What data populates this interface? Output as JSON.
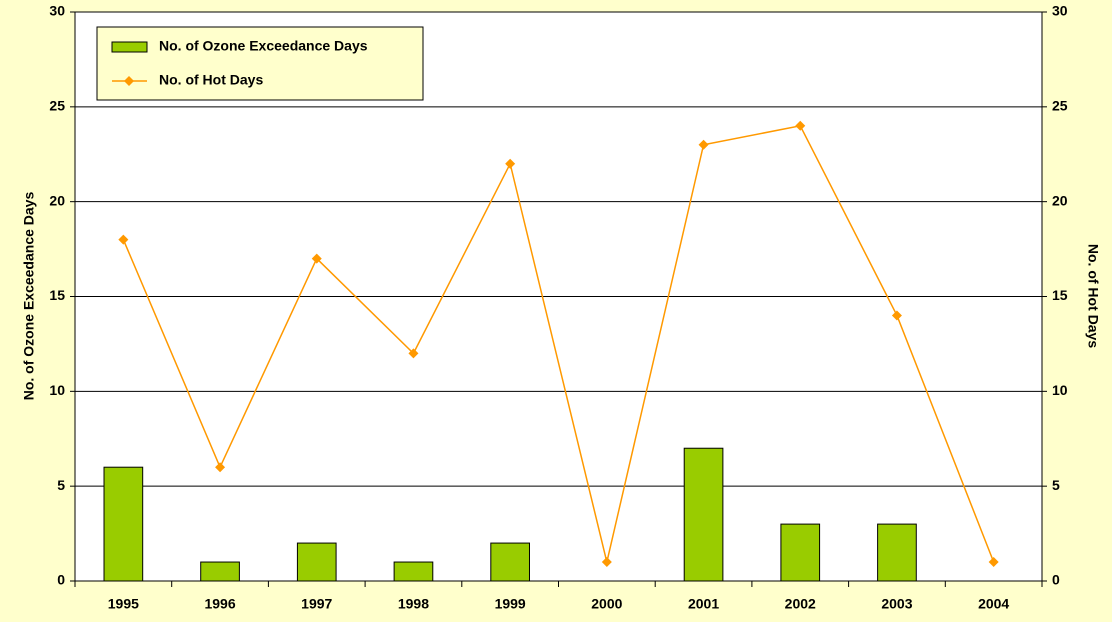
{
  "chart_data": {
    "type": "bar",
    "categories": [
      "1995",
      "1996",
      "1997",
      "1998",
      "1999",
      "2000",
      "2001",
      "2002",
      "2003",
      "2004"
    ],
    "series": [
      {
        "name": "No. of Ozone Exceedance Days",
        "type": "bar",
        "color": "#99cc00",
        "values": [
          6,
          1,
          2,
          1,
          2,
          0,
          7,
          3,
          3,
          0
        ]
      },
      {
        "name": "No. of Hot Days",
        "type": "line",
        "axis": "y2",
        "color": "#ff9900",
        "values": [
          18,
          6,
          17,
          12,
          22,
          1,
          23,
          24,
          14,
          1
        ]
      }
    ],
    "y_label": "No. of Ozone Exceedance Days",
    "y2_label": "No. of Hot Days",
    "ylim": [
      0,
      30
    ],
    "yticks": [
      0,
      5,
      10,
      15,
      20,
      25,
      30
    ],
    "y2lim": [
      0,
      30
    ],
    "y2ticks": [
      0,
      5,
      10,
      15,
      20,
      25,
      30
    ],
    "grid": true,
    "legend": "upper left"
  }
}
